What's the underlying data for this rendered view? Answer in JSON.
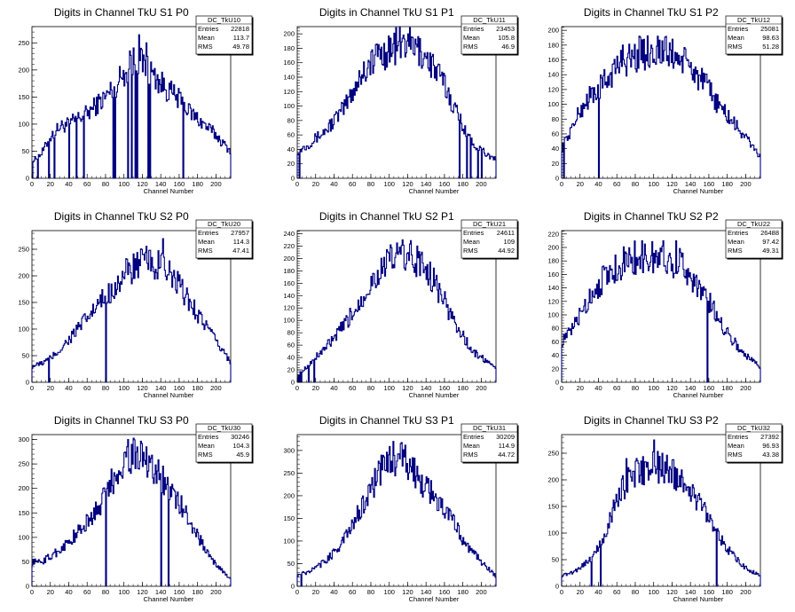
{
  "colors": {
    "histogram": "#000080",
    "axis": "#000000",
    "background": "#ffffff"
  },
  "chart_data": [
    {
      "type": "histogram",
      "title": "Digits in Channel TkU S1 P0",
      "xlabel": "Channel Number",
      "xlim": [
        0,
        216
      ],
      "ylim": [
        0,
        280
      ],
      "xticks": [
        0,
        20,
        40,
        60,
        80,
        100,
        120,
        140,
        160,
        180,
        200
      ],
      "yticks": [
        0,
        50,
        100,
        150,
        200,
        250
      ],
      "stats": {
        "name": "DC_TkU10",
        "entries_label": "Entries",
        "entries": "22818",
        "mean_label": "Mean",
        "mean": "113.7",
        "rms_label": "RMS",
        "rms": "49.78"
      },
      "anchors": [
        [
          0,
          30
        ],
        [
          10,
          45
        ],
        [
          20,
          75
        ],
        [
          30,
          95
        ],
        [
          40,
          100
        ],
        [
          50,
          110
        ],
        [
          60,
          120
        ],
        [
          70,
          135
        ],
        [
          80,
          150
        ],
        [
          90,
          170
        ],
        [
          100,
          195
        ],
        [
          110,
          215
        ],
        [
          115,
          220
        ],
        [
          120,
          210
        ],
        [
          130,
          195
        ],
        [
          140,
          175
        ],
        [
          150,
          160
        ],
        [
          160,
          145
        ],
        [
          170,
          125
        ],
        [
          180,
          110
        ],
        [
          190,
          95
        ],
        [
          200,
          80
        ],
        [
          210,
          60
        ],
        [
          216,
          50
        ]
      ],
      "spikes": [
        [
          116,
          265
        ],
        [
          124,
          250
        ],
        [
          106,
          235
        ]
      ],
      "dips": [
        0,
        6,
        18,
        24,
        40,
        48,
        56,
        88,
        90,
        104,
        108,
        112,
        114,
        126,
        128,
        164
      ]
    },
    {
      "type": "histogram",
      "title": "Digits in Channel TkU S1 P1",
      "xlabel": "Channel Number",
      "xlim": [
        0,
        216
      ],
      "ylim": [
        0,
        210
      ],
      "xticks": [
        0,
        20,
        40,
        60,
        80,
        100,
        120,
        140,
        160,
        180,
        200
      ],
      "yticks": [
        0,
        20,
        40,
        60,
        80,
        100,
        120,
        140,
        160,
        180,
        200
      ],
      "stats": {
        "name": "DC_TkU11",
        "entries_label": "Entries",
        "entries": "23453",
        "mean_label": "Mean",
        "mean": "105.8",
        "rms_label": "RMS",
        "rms": "46.9"
      },
      "anchors": [
        [
          0,
          38
        ],
        [
          10,
          45
        ],
        [
          20,
          55
        ],
        [
          30,
          65
        ],
        [
          40,
          80
        ],
        [
          50,
          95
        ],
        [
          60,
          120
        ],
        [
          70,
          145
        ],
        [
          80,
          160
        ],
        [
          90,
          170
        ],
        [
          100,
          178
        ],
        [
          110,
          185
        ],
        [
          120,
          185
        ],
        [
          130,
          178
        ],
        [
          140,
          170
        ],
        [
          150,
          150
        ],
        [
          160,
          130
        ],
        [
          170,
          100
        ],
        [
          180,
          75
        ],
        [
          190,
          50
        ],
        [
          200,
          40
        ],
        [
          210,
          30
        ],
        [
          216,
          25
        ]
      ],
      "spikes": [
        [
          120,
          200
        ],
        [
          88,
          185
        ]
      ],
      "dips": [
        2,
        176,
        184,
        188,
        196,
        200
      ]
    },
    {
      "type": "histogram",
      "title": "Digits in Channel TkU S1 P2",
      "xlabel": "Channel Number",
      "xlim": [
        0,
        216
      ],
      "ylim": [
        0,
        205
      ],
      "xticks": [
        0,
        20,
        40,
        60,
        80,
        100,
        120,
        140,
        160,
        180,
        200
      ],
      "yticks": [
        0,
        20,
        40,
        60,
        80,
        100,
        120,
        140,
        160,
        180,
        200
      ],
      "stats": {
        "name": "DC_TkU12",
        "entries_label": "Entries",
        "entries": "25081",
        "mean_label": "Mean",
        "mean": "98.63",
        "rms_label": "RMS",
        "rms": "51.28"
      },
      "anchors": [
        [
          0,
          40
        ],
        [
          10,
          65
        ],
        [
          20,
          90
        ],
        [
          30,
          110
        ],
        [
          40,
          120
        ],
        [
          50,
          135
        ],
        [
          60,
          150
        ],
        [
          70,
          160
        ],
        [
          80,
          165
        ],
        [
          90,
          170
        ],
        [
          100,
          172
        ],
        [
          110,
          170
        ],
        [
          120,
          168
        ],
        [
          130,
          160
        ],
        [
          140,
          150
        ],
        [
          150,
          135
        ],
        [
          160,
          120
        ],
        [
          170,
          100
        ],
        [
          180,
          85
        ],
        [
          190,
          70
        ],
        [
          200,
          55
        ],
        [
          210,
          40
        ],
        [
          216,
          28
        ]
      ],
      "spikes": [
        [
          84,
          192
        ],
        [
          104,
          192
        ],
        [
          66,
          180
        ]
      ],
      "dips": [
        2,
        40,
        216
      ]
    },
    {
      "type": "histogram",
      "title": "Digits in Channel TkU S2 P0",
      "xlabel": "Channel Number",
      "xlim": [
        0,
        216
      ],
      "ylim": [
        0,
        285
      ],
      "xticks": [
        0,
        20,
        40,
        60,
        80,
        100,
        120,
        140,
        160,
        180,
        200
      ],
      "yticks": [
        0,
        50,
        100,
        150,
        200,
        250
      ],
      "stats": {
        "name": "DC_TkU20",
        "entries_label": "Entries",
        "entries": "27957",
        "mean_label": "Mean",
        "mean": "114.3",
        "rms_label": "RMS",
        "rms": "47.41"
      },
      "anchors": [
        [
          0,
          30
        ],
        [
          10,
          35
        ],
        [
          20,
          45
        ],
        [
          30,
          60
        ],
        [
          40,
          80
        ],
        [
          50,
          100
        ],
        [
          60,
          120
        ],
        [
          70,
          140
        ],
        [
          80,
          160
        ],
        [
          90,
          180
        ],
        [
          100,
          200
        ],
        [
          110,
          215
        ],
        [
          120,
          225
        ],
        [
          130,
          225
        ],
        [
          140,
          215
        ],
        [
          150,
          200
        ],
        [
          160,
          180
        ],
        [
          170,
          155
        ],
        [
          180,
          130
        ],
        [
          190,
          105
        ],
        [
          200,
          75
        ],
        [
          210,
          55
        ],
        [
          216,
          35
        ]
      ],
      "spikes": [
        [
          142,
          270
        ],
        [
          120,
          240
        ]
      ],
      "dips": [
        18,
        80
      ]
    },
    {
      "type": "histogram",
      "title": "Digits in Channel TkU S2 P1",
      "xlabel": "Channel Number",
      "xlim": [
        0,
        216
      ],
      "ylim": [
        0,
        245
      ],
      "xticks": [
        0,
        20,
        40,
        60,
        80,
        100,
        120,
        140,
        160,
        180,
        200
      ],
      "yticks": [
        0,
        20,
        40,
        60,
        80,
        100,
        120,
        140,
        160,
        180,
        200,
        220,
        240
      ],
      "stats": {
        "name": "DC_TkU21",
        "entries_label": "Entries",
        "entries": "24611",
        "mean_label": "Mean",
        "mean": "109",
        "rms_label": "RMS",
        "rms": "44.92"
      },
      "anchors": [
        [
          0,
          10
        ],
        [
          10,
          25
        ],
        [
          20,
          40
        ],
        [
          30,
          55
        ],
        [
          40,
          70
        ],
        [
          50,
          90
        ],
        [
          60,
          110
        ],
        [
          70,
          135
        ],
        [
          80,
          160
        ],
        [
          90,
          180
        ],
        [
          100,
          195
        ],
        [
          110,
          205
        ],
        [
          120,
          205
        ],
        [
          130,
          195
        ],
        [
          140,
          185
        ],
        [
          150,
          160
        ],
        [
          160,
          130
        ],
        [
          170,
          100
        ],
        [
          180,
          75
        ],
        [
          190,
          50
        ],
        [
          200,
          40
        ],
        [
          210,
          30
        ],
        [
          216,
          20
        ]
      ],
      "spikes": [
        [
          114,
          230
        ],
        [
          130,
          220
        ]
      ],
      "dips": [
        0,
        2,
        4,
        12,
        18
      ]
    },
    {
      "type": "histogram",
      "title": "Digits in Channel TkU S2 P2",
      "xlabel": "Channel Number",
      "xlim": [
        0,
        216
      ],
      "ylim": [
        0,
        225
      ],
      "xticks": [
        0,
        20,
        40,
        60,
        80,
        100,
        120,
        140,
        160,
        180,
        200
      ],
      "yticks": [
        0,
        20,
        40,
        60,
        80,
        100,
        120,
        140,
        160,
        180,
        200,
        220
      ],
      "stats": {
        "name": "DC_TkU22",
        "entries_label": "Entries",
        "entries": "26488",
        "mean_label": "Mean",
        "mean": "97.42",
        "rms_label": "RMS",
        "rms": "49.31"
      },
      "anchors": [
        [
          0,
          60
        ],
        [
          10,
          75
        ],
        [
          20,
          100
        ],
        [
          30,
          125
        ],
        [
          40,
          145
        ],
        [
          50,
          160
        ],
        [
          60,
          170
        ],
        [
          70,
          180
        ],
        [
          80,
          185
        ],
        [
          90,
          185
        ],
        [
          100,
          185
        ],
        [
          110,
          182
        ],
        [
          120,
          180
        ],
        [
          130,
          175
        ],
        [
          140,
          160
        ],
        [
          150,
          140
        ],
        [
          160,
          120
        ],
        [
          170,
          95
        ],
        [
          180,
          75
        ],
        [
          190,
          55
        ],
        [
          200,
          40
        ],
        [
          210,
          30
        ],
        [
          216,
          22
        ]
      ],
      "spikes": [
        [
          110,
          210
        ],
        [
          124,
          210
        ],
        [
          90,
          205
        ]
      ],
      "dips": [
        158,
        216
      ]
    },
    {
      "type": "histogram",
      "title": "Digits in Channel TkU S3 P0",
      "xlabel": "Channel Number",
      "xlim": [
        0,
        216
      ],
      "ylim": [
        0,
        310
      ],
      "xticks": [
        0,
        20,
        40,
        60,
        80,
        100,
        120,
        140,
        160,
        180,
        200
      ],
      "yticks": [
        0,
        50,
        100,
        150,
        200,
        250,
        300
      ],
      "stats": {
        "name": "DC_TkU30",
        "entries_label": "Entries",
        "entries": "30246",
        "mean_label": "Mean",
        "mean": "104.3",
        "rms_label": "RMS",
        "rms": "45.9"
      },
      "anchors": [
        [
          0,
          50
        ],
        [
          10,
          50
        ],
        [
          20,
          60
        ],
        [
          30,
          75
        ],
        [
          40,
          90
        ],
        [
          50,
          110
        ],
        [
          60,
          130
        ],
        [
          70,
          155
        ],
        [
          80,
          185
        ],
        [
          90,
          225
        ],
        [
          100,
          255
        ],
        [
          110,
          270
        ],
        [
          120,
          265
        ],
        [
          130,
          250
        ],
        [
          140,
          225
        ],
        [
          150,
          195
        ],
        [
          160,
          170
        ],
        [
          170,
          140
        ],
        [
          180,
          105
        ],
        [
          190,
          70
        ],
        [
          200,
          45
        ],
        [
          210,
          25
        ],
        [
          216,
          15
        ]
      ],
      "spikes": [
        [
          104,
          300
        ],
        [
          108,
          290
        ],
        [
          124,
          285
        ]
      ],
      "dips": [
        80,
        140,
        148
      ]
    },
    {
      "type": "histogram",
      "title": "Digits in Channel TkU S3 P1",
      "xlabel": "Channel Number",
      "xlim": [
        0,
        216
      ],
      "ylim": [
        0,
        335
      ],
      "xticks": [
        0,
        20,
        40,
        60,
        80,
        100,
        120,
        140,
        160,
        180,
        200
      ],
      "yticks": [
        0,
        50,
        100,
        150,
        200,
        250,
        300
      ],
      "stats": {
        "name": "DC_TkU31",
        "entries_label": "Entries",
        "entries": "30209",
        "mean_label": "Mean",
        "mean": "114.9",
        "rms_label": "RMS",
        "rms": "44.72"
      },
      "anchors": [
        [
          0,
          25
        ],
        [
          10,
          30
        ],
        [
          20,
          40
        ],
        [
          30,
          55
        ],
        [
          40,
          75
        ],
        [
          50,
          100
        ],
        [
          60,
          135
        ],
        [
          70,
          175
        ],
        [
          80,
          215
        ],
        [
          90,
          250
        ],
        [
          100,
          280
        ],
        [
          110,
          285
        ],
        [
          120,
          270
        ],
        [
          130,
          245
        ],
        [
          140,
          220
        ],
        [
          150,
          195
        ],
        [
          160,
          170
        ],
        [
          170,
          140
        ],
        [
          180,
          105
        ],
        [
          190,
          75
        ],
        [
          200,
          55
        ],
        [
          210,
          35
        ],
        [
          216,
          22
        ]
      ],
      "spikes": [
        [
          104,
          320
        ],
        [
          112,
          315
        ]
      ],
      "dips": [
        4
      ]
    },
    {
      "type": "histogram",
      "title": "Digits in Channel TkU S3 P2",
      "xlabel": "Channel Number",
      "xlim": [
        0,
        216
      ],
      "ylim": [
        0,
        285
      ],
      "xticks": [
        0,
        20,
        40,
        60,
        80,
        100,
        120,
        140,
        160,
        180,
        200
      ],
      "yticks": [
        0,
        50,
        100,
        150,
        200,
        250
      ],
      "stats": {
        "name": "DC_TkU32",
        "entries_label": "Entries",
        "entries": "27392",
        "mean_label": "Mean",
        "mean": "96.93",
        "rms_label": "RMS",
        "rms": "43.38"
      },
      "anchors": [
        [
          0,
          20
        ],
        [
          10,
          25
        ],
        [
          20,
          35
        ],
        [
          30,
          50
        ],
        [
          40,
          70
        ],
        [
          50,
          110
        ],
        [
          60,
          165
        ],
        [
          70,
          195
        ],
        [
          80,
          210
        ],
        [
          90,
          220
        ],
        [
          100,
          225
        ],
        [
          110,
          222
        ],
        [
          120,
          215
        ],
        [
          130,
          200
        ],
        [
          140,
          180
        ],
        [
          150,
          155
        ],
        [
          160,
          135
        ],
        [
          170,
          100
        ],
        [
          180,
          70
        ],
        [
          190,
          50
        ],
        [
          200,
          35
        ],
        [
          210,
          25
        ],
        [
          216,
          20
        ]
      ],
      "spikes": [
        [
          100,
          275
        ],
        [
          70,
          240
        ]
      ],
      "dips": [
        32,
        42,
        168
      ]
    }
  ]
}
